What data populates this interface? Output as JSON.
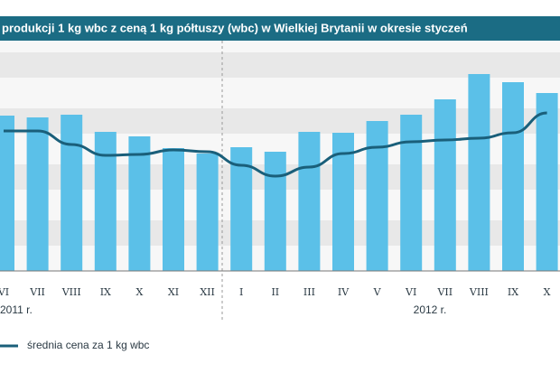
{
  "chart_data": {
    "type": "bar",
    "title": "produkcji 1 kg wbc z ceną 1 kg półtuszy (wbc) w Wielkiej Brytanii w okresie styczeń",
    "categories": [
      "VI",
      "VII",
      "VIII",
      "IX",
      "X",
      "XI",
      "XII",
      "I",
      "II",
      "III",
      "IV",
      "V",
      "VI",
      "VII",
      "VIII",
      "IX",
      "X"
    ],
    "groups": [
      "2011 r.",
      "2012 r."
    ],
    "ylim": [
      0,
      255
    ],
    "series": [
      {
        "color": "#5bc0e8",
        "values": [
          172,
          170,
          173,
          154,
          149,
          136,
          130,
          137,
          132,
          154,
          153,
          166,
          173,
          190,
          218,
          209,
          197
        ]
      },
      {
        "name": "średnia cena za 1 kg wbc",
        "type": "line",
        "color": "#1a5f7a",
        "values": [
          155,
          155,
          140,
          128,
          129,
          134,
          132,
          117,
          105,
          115,
          130,
          137,
          143,
          145,
          147,
          153,
          175
        ]
      }
    ]
  }
}
